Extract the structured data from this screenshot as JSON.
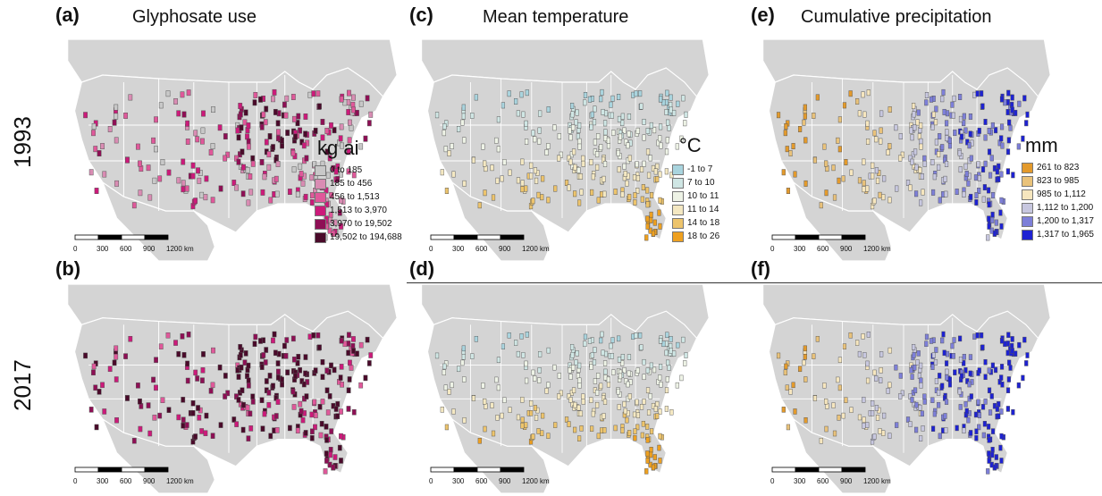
{
  "panels": [
    {
      "id": "a",
      "label": "(a)",
      "title": "Glyphosate use",
      "scheme": "glyph",
      "year": "1993"
    },
    {
      "id": "c",
      "label": "(c)",
      "title": "Mean temperature",
      "scheme": "temp",
      "year": "1993"
    },
    {
      "id": "e",
      "label": "(e)",
      "title": "Cumulative precipitation",
      "scheme": "precip",
      "year": "1993"
    },
    {
      "id": "b",
      "label": "(b)",
      "title": "",
      "scheme": "glyph",
      "year": "2017"
    },
    {
      "id": "d",
      "label": "(d)",
      "title": "",
      "scheme": "temp",
      "year": "2017"
    },
    {
      "id": "f",
      "label": "(f)",
      "title": "",
      "scheme": "precip",
      "year": "2017"
    }
  ],
  "years": {
    "top": "1993",
    "bottom": "2017"
  },
  "legends": {
    "glyph": {
      "title": "kg ai",
      "classes": [
        "0 to 185",
        "185 to 456",
        "456 to 1,513",
        "1,513 to 3,970",
        "3,970 to 19,502",
        "19,502 to 194,688"
      ],
      "colors": [
        "#c8c8c8",
        "#d98cb3",
        "#e0589a",
        "#cc1a7a",
        "#8e0f55",
        "#4a0a2a"
      ]
    },
    "temp": {
      "title": "°C",
      "classes": [
        "-1 to 7",
        "7 to 10",
        "10 to 11",
        "11 to 14",
        "14 to 18",
        "18 to 26"
      ],
      "colors": [
        "#a9d4de",
        "#cfe6e4",
        "#eef3e6",
        "#f4e8c2",
        "#edc46c",
        "#eea020"
      ]
    },
    "precip": {
      "title": "mm",
      "classes": [
        "261 to 823",
        "823 to 985",
        "985 to 1,112",
        "1,112 to 1,200",
        "1,200 to 1,317",
        "1,317 to 1,965"
      ],
      "colors": [
        "#e39a2c",
        "#e9c27a",
        "#f6e6be",
        "#c7c7df",
        "#7d7fd8",
        "#1e22d2"
      ]
    }
  },
  "scalebar": {
    "ticks": [
      "0",
      "300",
      "600",
      "900",
      "1200 km"
    ]
  },
  "colors": {
    "land": "#d4d4d4",
    "borders": "#ffffff",
    "background": "#ffffff"
  }
}
